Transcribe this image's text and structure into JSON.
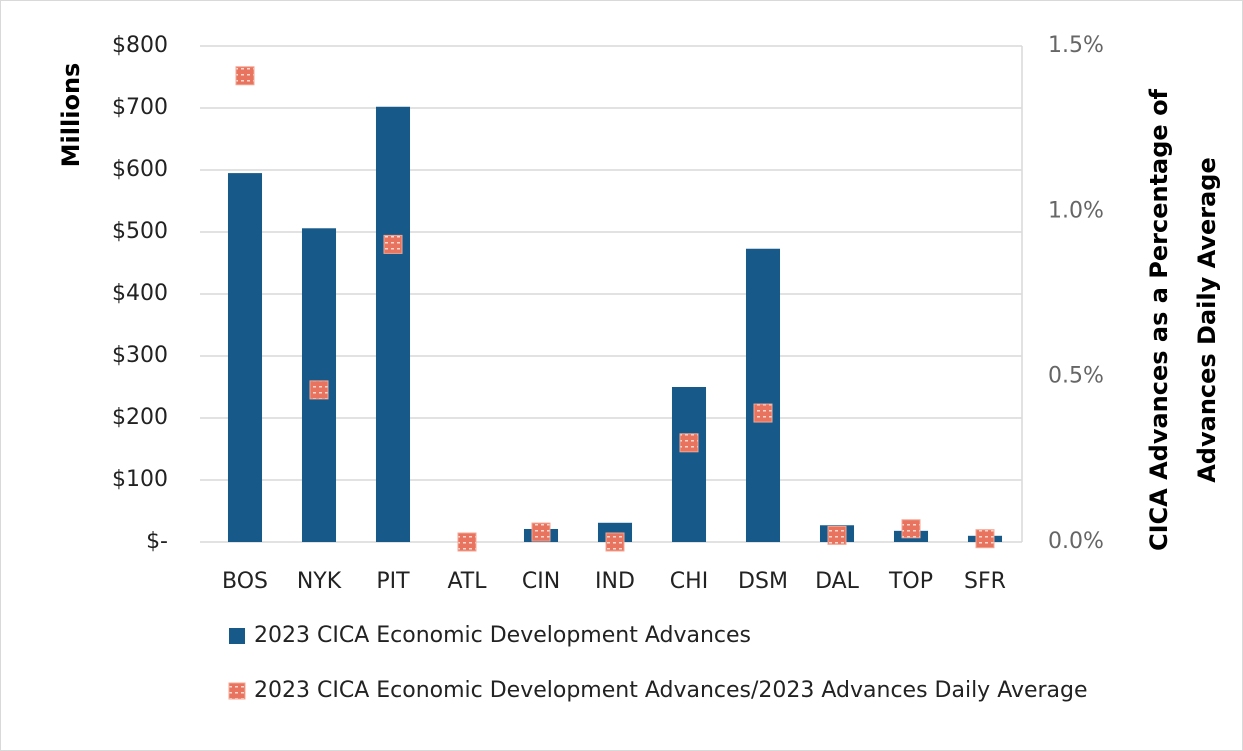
{
  "chart_data": {
    "type": "bar_marker",
    "categories": [
      "BOS",
      "NYK",
      "PIT",
      "ATL",
      "CIN",
      "IND",
      "CHI",
      "DSM",
      "DAL",
      "TOP",
      "SFR"
    ],
    "series": [
      {
        "name": "2023 CICA Economic Development Advances",
        "color": "#175a8a",
        "type": "bar",
        "values": [
          595,
          506,
          702,
          0,
          21,
          31,
          250,
          473,
          27,
          18,
          10
        ]
      },
      {
        "name": "2023 CICA Economic Development Advances/2023 Advances Daily Average",
        "color": "#e8735e",
        "type": "marker",
        "axis": "y2",
        "values": [
          1.41,
          0.46,
          0.9,
          0.0,
          0.03,
          0.0,
          0.3,
          0.39,
          0.02,
          0.04,
          0.01
        ]
      }
    ],
    "ylabel": "Millions",
    "y2label": [
      "CICA Advances as a Percentage of",
      "Advances Daily Average"
    ],
    "ylim": [
      0,
      800
    ],
    "yticks": [
      {
        "value": 0,
        "label": "$-"
      },
      {
        "value": 100,
        "label": "$100"
      },
      {
        "value": 200,
        "label": "$200"
      },
      {
        "value": 300,
        "label": "$300"
      },
      {
        "value": 400,
        "label": "$400"
      },
      {
        "value": 500,
        "label": "$500"
      },
      {
        "value": 600,
        "label": "$600"
      },
      {
        "value": 700,
        "label": "$700"
      },
      {
        "value": 800,
        "label": "$800"
      }
    ],
    "y2lim": [
      0,
      1.5
    ],
    "y2ticks": [
      {
        "value": 0,
        "label": "0.0%"
      },
      {
        "value": 0.5,
        "label": "0.5%"
      },
      {
        "value": 1.0,
        "label": "1.0%"
      },
      {
        "value": 1.5,
        "label": "1.5%"
      }
    ],
    "grid": true,
    "legend": "bottom"
  }
}
